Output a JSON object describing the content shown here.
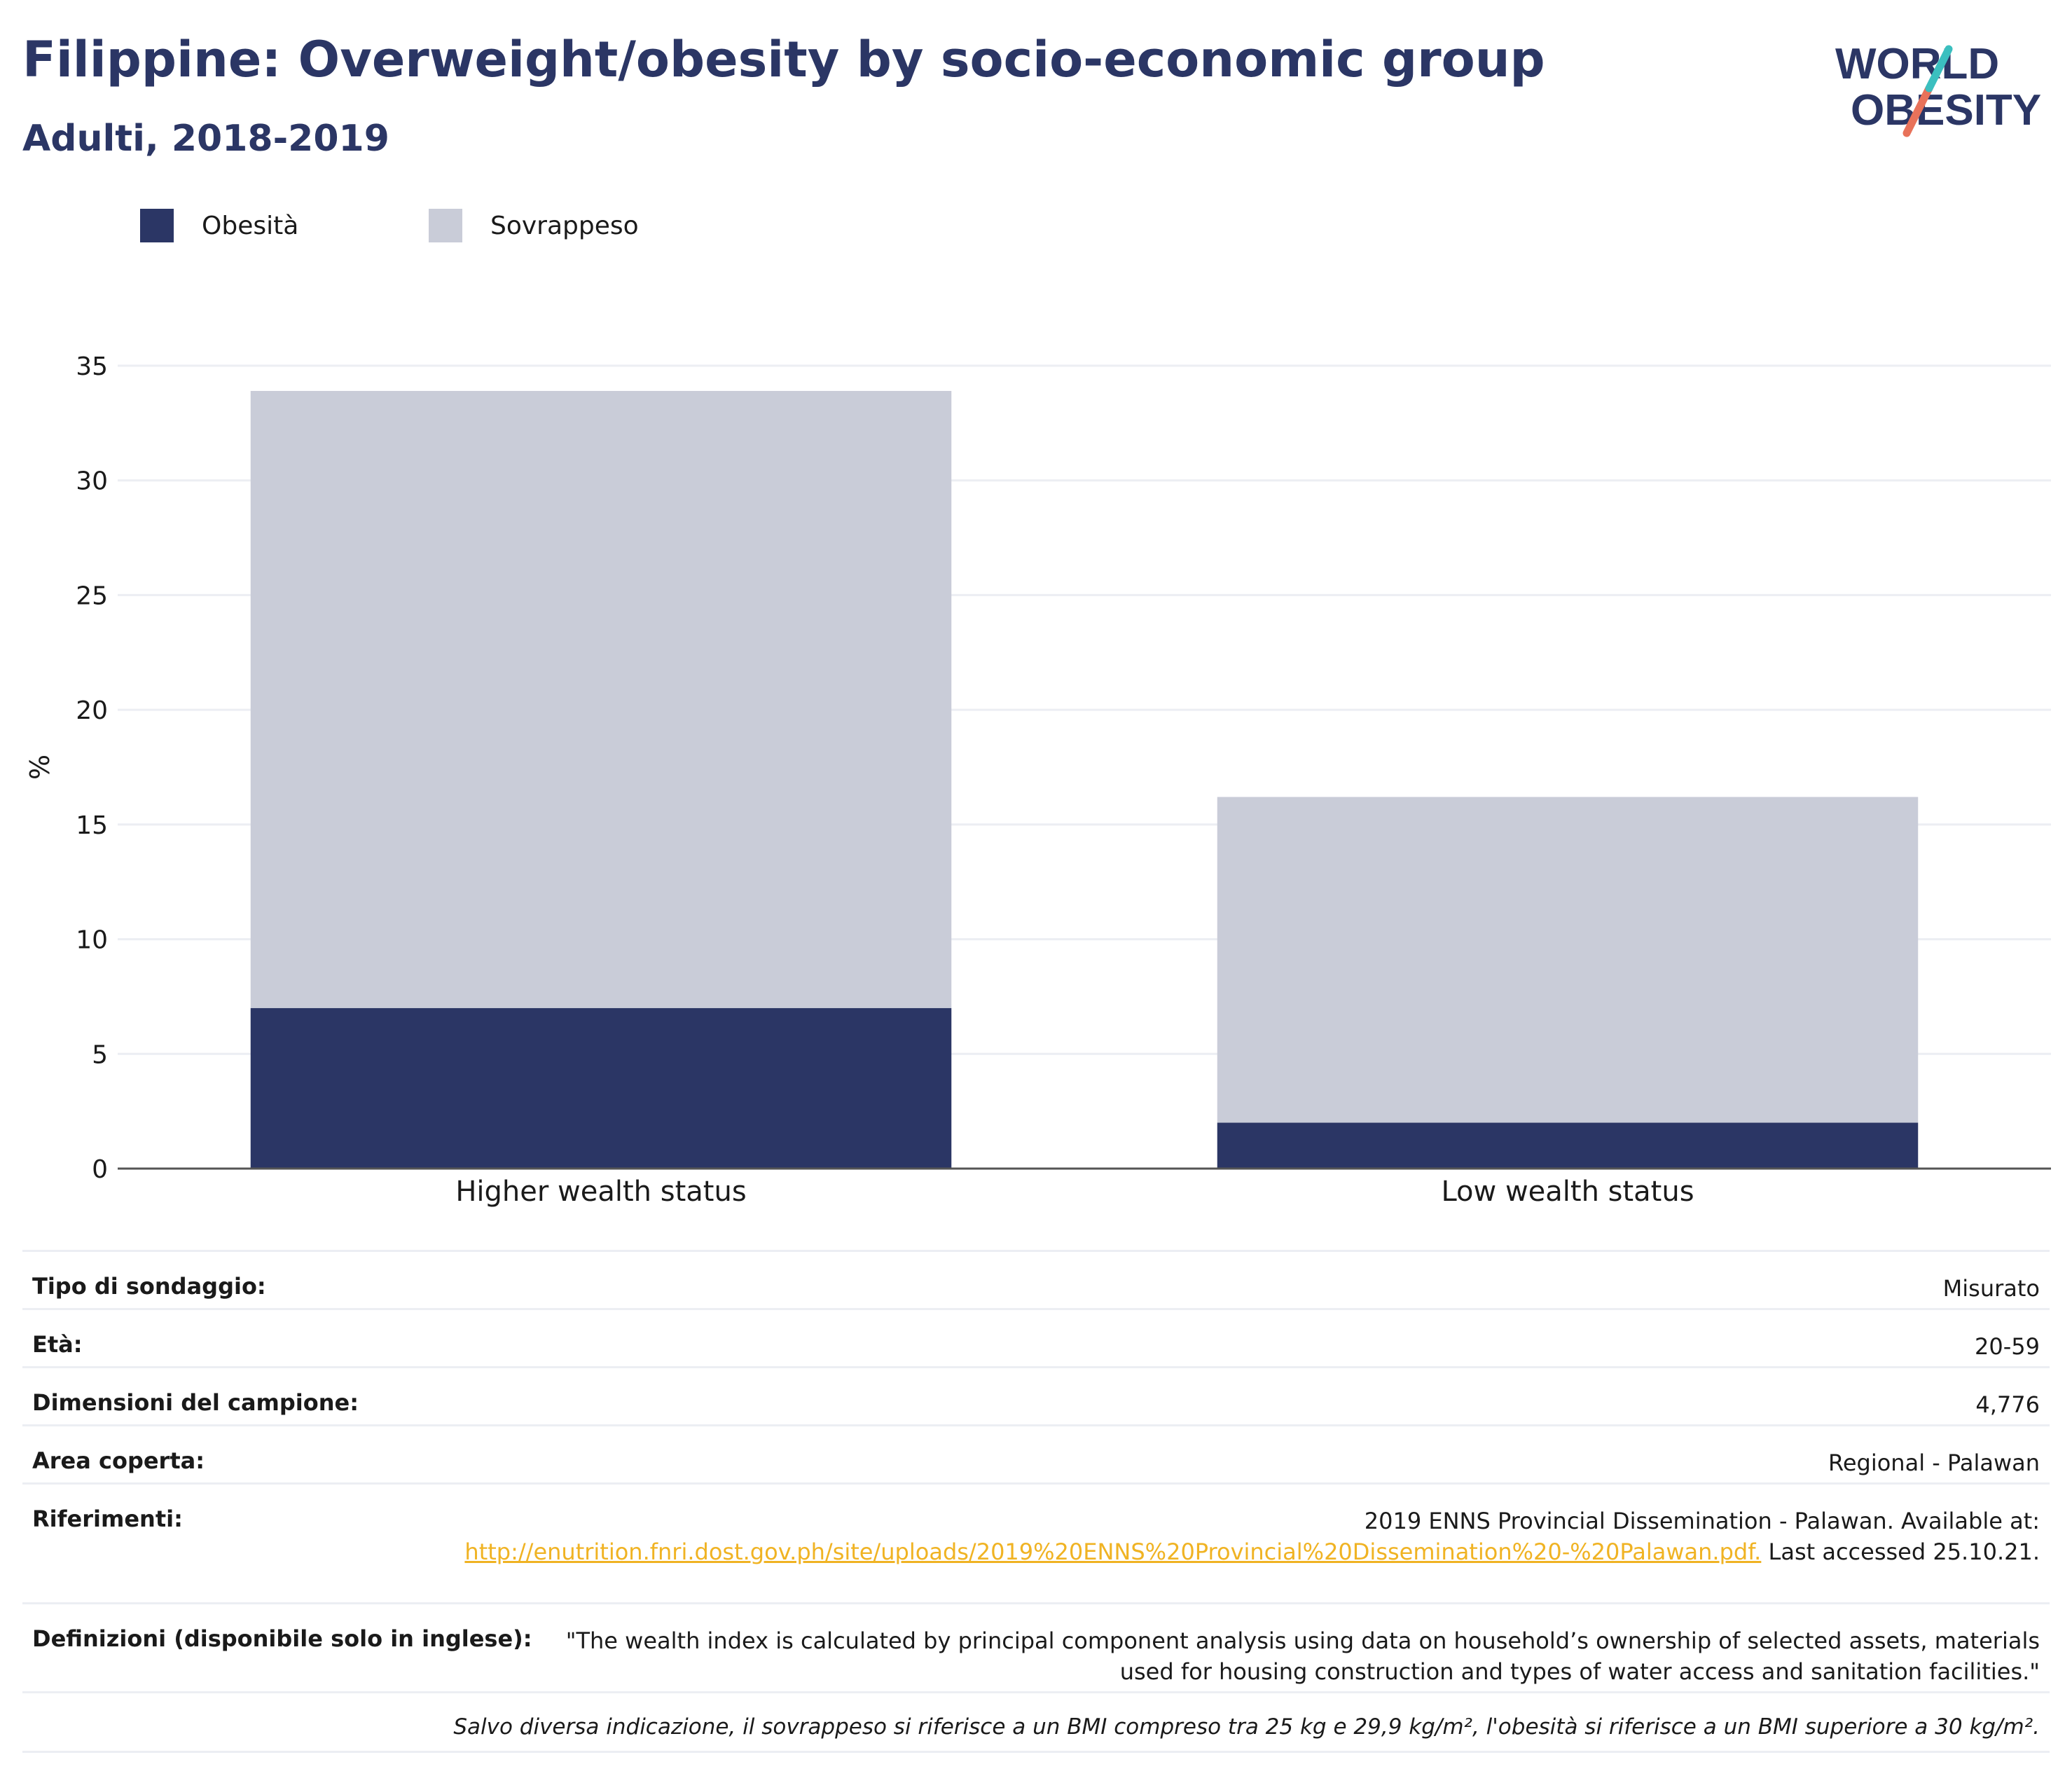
{
  "header": {
    "title": "Filippine: Overweight/obesity by socio-economic group",
    "subtitle": "Adulti, 2018-2019"
  },
  "logo": {
    "line1": "WORLD",
    "line2": "OBESITY"
  },
  "colors": {
    "obesity": "#2b3665",
    "overweight": "#c9ccd8",
    "brand_navy": "#2b3665",
    "brand_teal": "#3bbfbf",
    "brand_coral": "#e8725a",
    "link": "#f0b323"
  },
  "chart_data": {
    "type": "bar",
    "stacked": true,
    "title": "Filippine: Overweight/obesity by socio-economic group",
    "subtitle": "Adulti, 2018-2019",
    "xlabel": "",
    "ylabel": "%",
    "ylim": [
      0,
      35
    ],
    "yticks": [
      0,
      5,
      10,
      15,
      20,
      25,
      30,
      35
    ],
    "grid": true,
    "legend_position": "top-left",
    "categories": [
      "Higher wealth status",
      "Low wealth status"
    ],
    "series": [
      {
        "name": "Obesità",
        "values": [
          7.0,
          2.0
        ]
      },
      {
        "name": "Sovrappeso",
        "values": [
          26.9,
          14.2
        ]
      }
    ]
  },
  "info": {
    "survey_type": {
      "label": "Tipo di sondaggio:",
      "value": "Misurato"
    },
    "age": {
      "label": "Età:",
      "value": "20-59"
    },
    "sample_size": {
      "label": "Dimensioni del campione:",
      "value": "4,776"
    },
    "area": {
      "label": "Area coperta:",
      "value": "Regional - Palawan"
    },
    "references": {
      "label": "Riferimenti:",
      "text_before": "2019 ENNS Provincial Dissemination - Palawan. Available at:",
      "link": "http://enutrition.fnri.dost.gov.ph/site/uploads/2019%20ENNS%20Provincial%20Dissemination%20-%20Palawan.pdf.",
      "text_after": "Last accessed 25.10.21."
    },
    "definitions": {
      "label": "Definizioni (disponibile solo in inglese):",
      "value": "\"The wealth index is calculated by principal component analysis using data on household’s ownership of selected assets, materials used for housing construction and types of water access and sanitation facilities.\""
    },
    "footnote": "Salvo diversa indicazione, il sovrappeso si riferisce a un BMI compreso tra 25 kg e 29,9 kg/m², l'obesità si riferisce a un BMI superiore a 30 kg/m²."
  }
}
